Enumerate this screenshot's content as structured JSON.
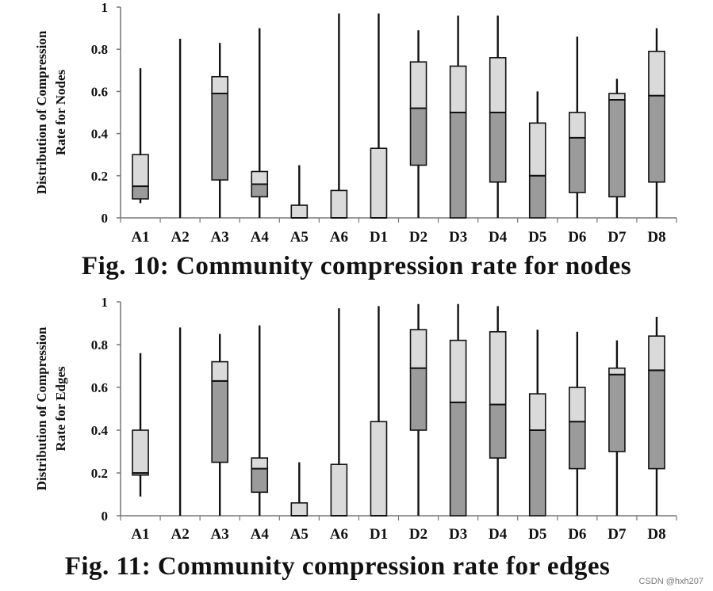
{
  "colors": {
    "lower_box": "#9b9b9b",
    "upper_box": "#dadada",
    "whisker": "#111111",
    "axis": "#777777"
  },
  "captions": {
    "fig10": "Fig. 10: Community compression rate for nodes",
    "fig11": "Fig. 11: Community compression rate for edges"
  },
  "watermark": "CSDN @hxh207",
  "chart_data": [
    {
      "type": "box",
      "ylabel_line1": "Distribution of Compression",
      "ylabel_line2": "Rate for Nodes",
      "ylim": [
        0,
        1
      ],
      "yticks": [
        "0",
        "0.2",
        "0.4",
        "0.6",
        "0.8",
        "1"
      ],
      "categories": [
        "A1",
        "A2",
        "A3",
        "A4",
        "A5",
        "A6",
        "D1",
        "D2",
        "D3",
        "D4",
        "D5",
        "D6",
        "D7",
        "D8"
      ],
      "min": [
        0.07,
        0,
        0,
        0,
        0,
        0,
        0,
        0,
        0,
        0,
        0,
        0,
        0,
        0
      ],
      "q1": [
        0.09,
        0,
        0.18,
        0.1,
        0,
        0,
        0,
        0.25,
        0,
        0.17,
        0,
        0.12,
        0.1,
        0.17
      ],
      "median": [
        0.15,
        0,
        0.59,
        0.16,
        0,
        0,
        0,
        0.52,
        0.5,
        0.5,
        0.2,
        0.38,
        0.56,
        0.58
      ],
      "q3": [
        0.3,
        0,
        0.67,
        0.22,
        0.06,
        0.13,
        0.33,
        0.74,
        0.72,
        0.76,
        0.45,
        0.5,
        0.59,
        0.79
      ],
      "max": [
        0.71,
        0.85,
        0.83,
        0.9,
        0.25,
        0.97,
        0.97,
        0.89,
        0.96,
        0.96,
        0.6,
        0.86,
        0.66,
        0.9
      ]
    },
    {
      "type": "box",
      "ylabel_line1": "Distribution of Compression",
      "ylabel_line2": "Rate for Edges",
      "ylim": [
        0,
        1
      ],
      "yticks": [
        "0",
        "0.2",
        "0.4",
        "0.6",
        "0.8",
        "1"
      ],
      "categories": [
        "A1",
        "A2",
        "A3",
        "A4",
        "A5",
        "A6",
        "D1",
        "D2",
        "D3",
        "D4",
        "D5",
        "D6",
        "D7",
        "D8"
      ],
      "min": [
        0.09,
        0,
        0,
        0,
        0,
        0,
        0,
        0,
        0,
        0,
        0,
        0,
        0,
        0
      ],
      "q1": [
        0.19,
        0,
        0.25,
        0.11,
        0,
        0,
        0,
        0.4,
        0,
        0.27,
        0,
        0.22,
        0.3,
        0.22
      ],
      "median": [
        0.2,
        0,
        0.63,
        0.22,
        0,
        0,
        0,
        0.69,
        0.53,
        0.52,
        0.4,
        0.44,
        0.66,
        0.68
      ],
      "q3": [
        0.4,
        0,
        0.72,
        0.27,
        0.06,
        0.24,
        0.44,
        0.87,
        0.82,
        0.86,
        0.57,
        0.6,
        0.69,
        0.84
      ],
      "max": [
        0.76,
        0.88,
        0.85,
        0.89,
        0.25,
        0.97,
        0.98,
        0.99,
        0.99,
        0.98,
        0.87,
        0.86,
        0.82,
        0.93
      ]
    }
  ]
}
